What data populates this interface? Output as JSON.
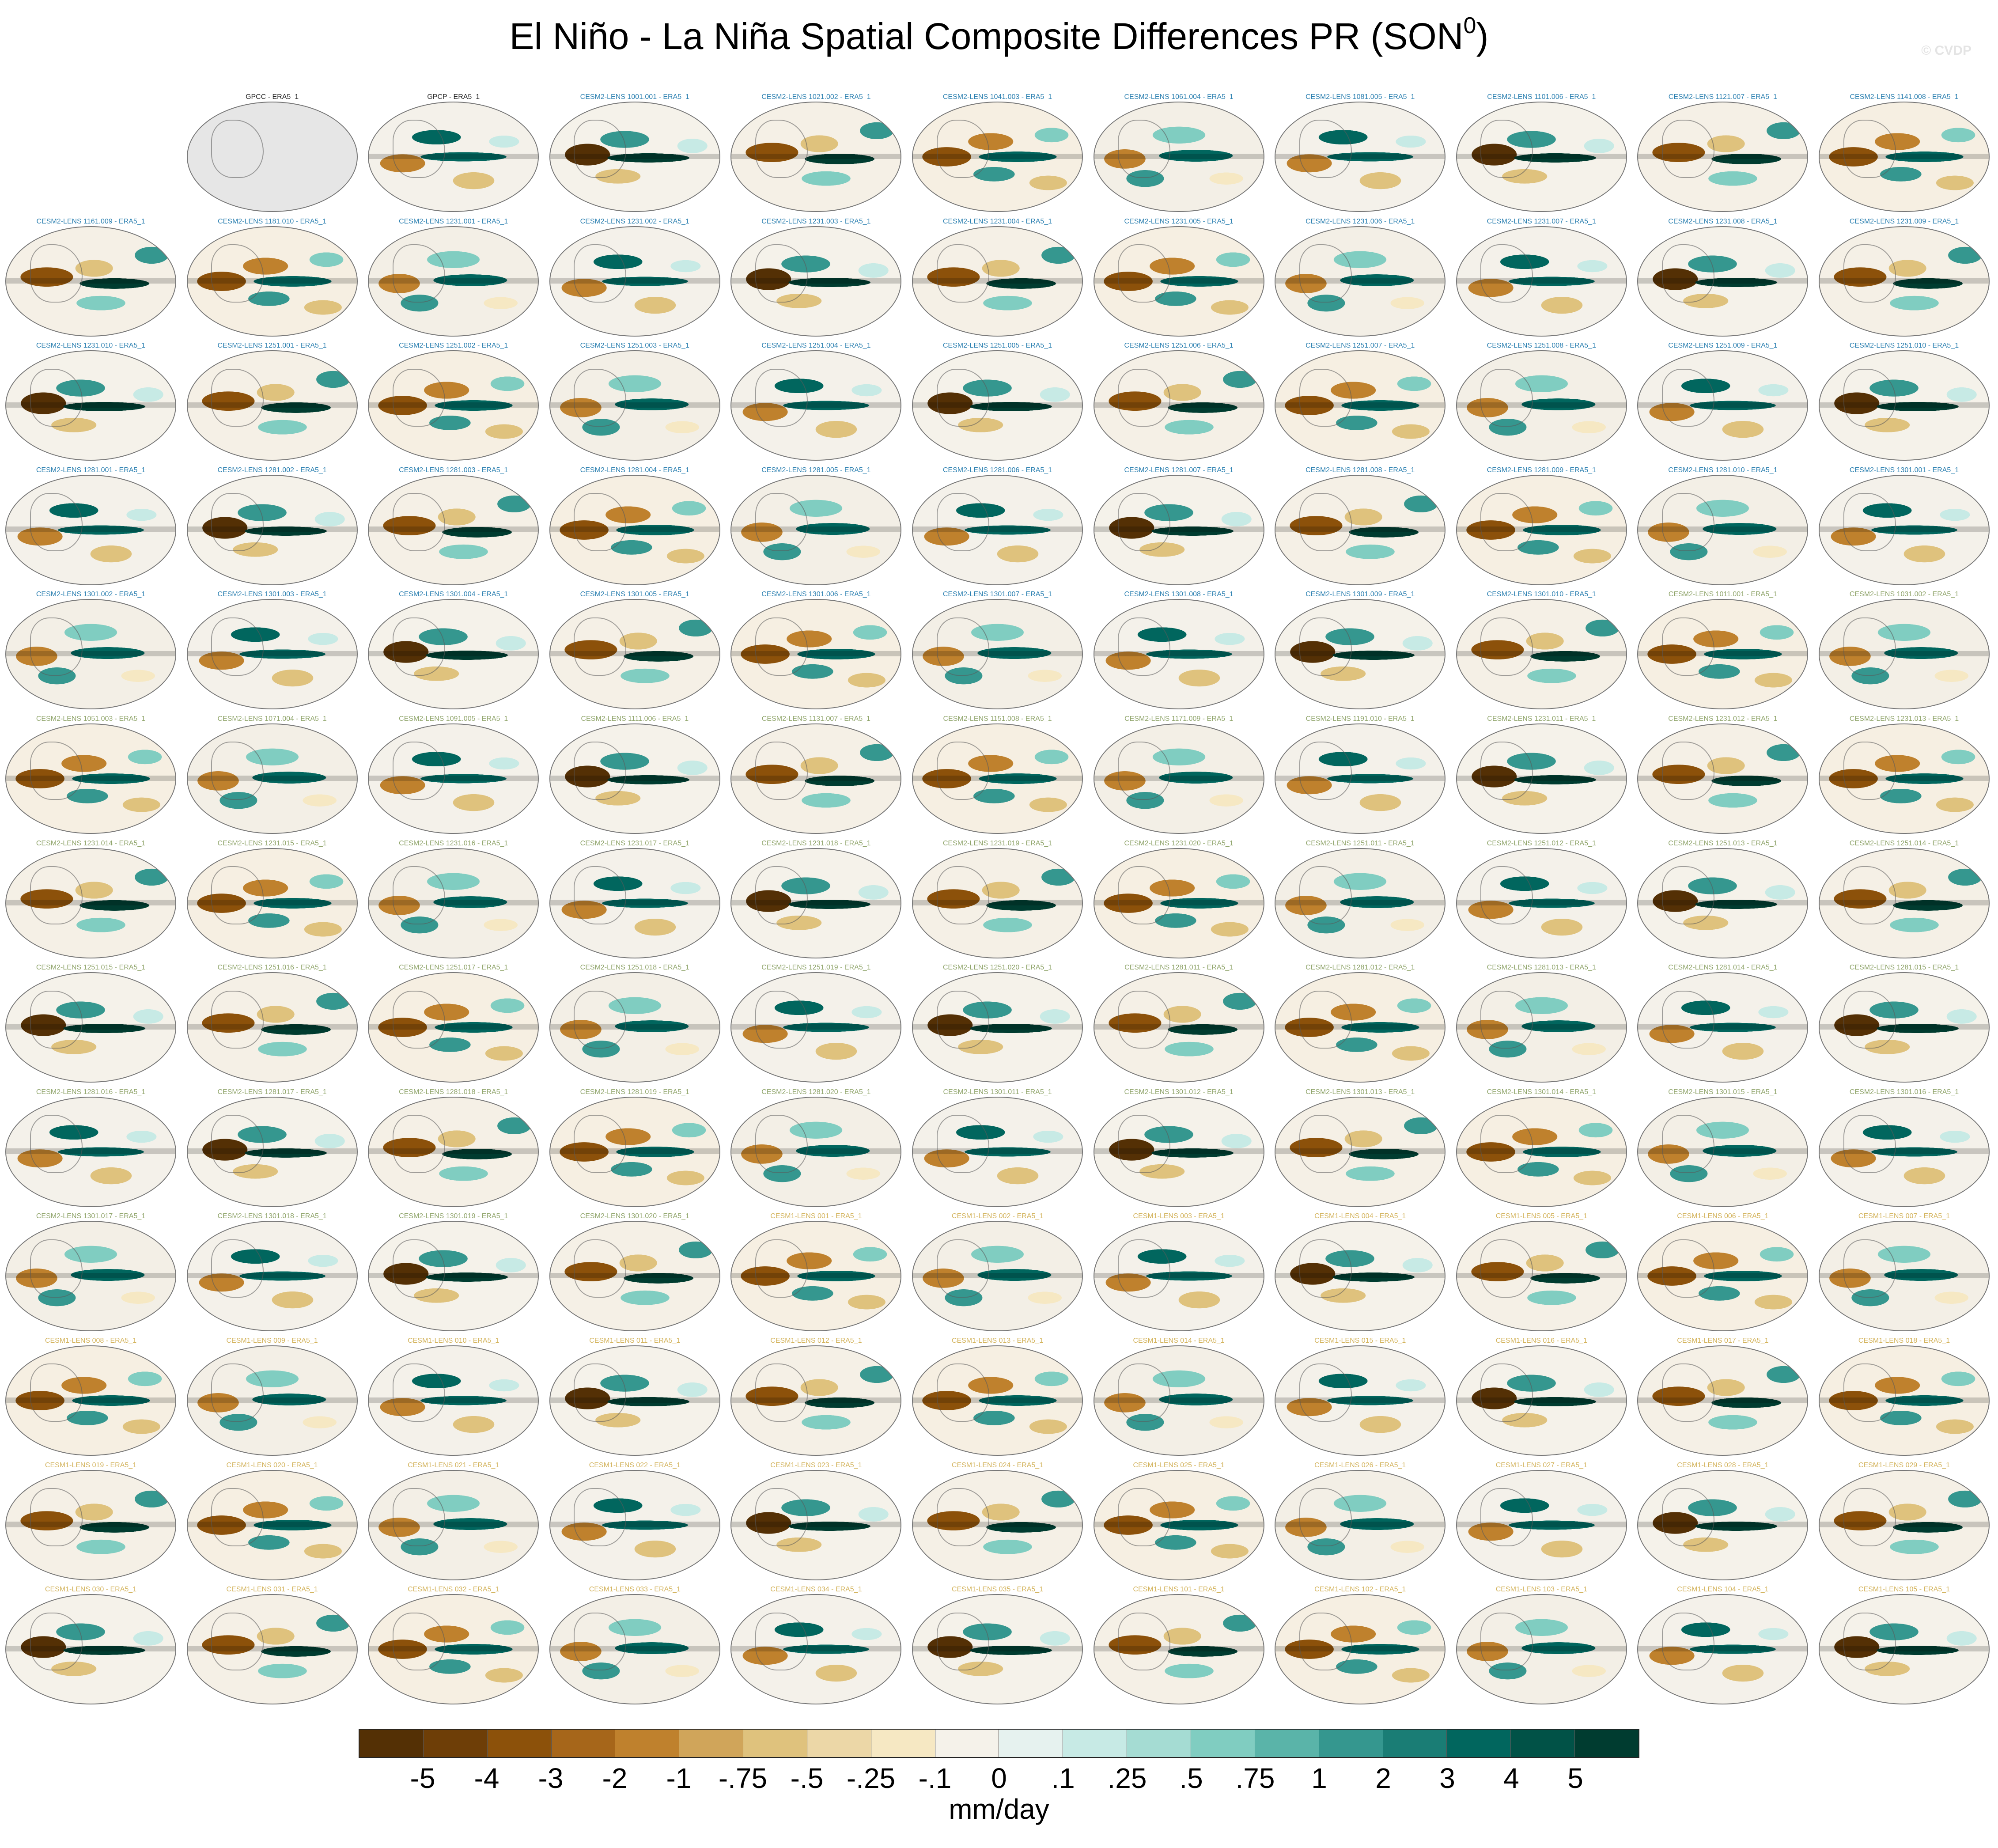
{
  "title_main": "El Niño - La Niña Spatial Composite Differences PR (SON",
  "title_sup": "0",
  "title_close": ")",
  "watermark": "© CVDP",
  "colors": {
    "gpcc": "#222222",
    "cesm2_a": "#2a7fb0",
    "cesm2_b": "#8fa46a",
    "cesm1": "#d3b35c"
  },
  "rows": [
    [
      null,
      {
        "label": "GPCC - ERA5_1",
        "group": "gpcc",
        "obs": true
      },
      {
        "label": "GPCP - ERA5_1",
        "group": "gpcc"
      },
      {
        "label": "CESM2-LENS 1001.001 - ERA5_1",
        "group": "cesm2_a"
      },
      {
        "label": "CESM2-LENS 1021.002 - ERA5_1",
        "group": "cesm2_a"
      },
      {
        "label": "CESM2-LENS 1041.003 - ERA5_1",
        "group": "cesm2_a"
      },
      {
        "label": "CESM2-LENS 1061.004 - ERA5_1",
        "group": "cesm2_a"
      },
      {
        "label": "CESM2-LENS 1081.005 - ERA5_1",
        "group": "cesm2_a"
      },
      {
        "label": "CESM2-LENS 1101.006 - ERA5_1",
        "group": "cesm2_a"
      },
      {
        "label": "CESM2-LENS 1121.007 - ERA5_1",
        "group": "cesm2_a"
      },
      {
        "label": "CESM2-LENS 1141.008 - ERA5_1",
        "group": "cesm2_a"
      }
    ],
    [
      {
        "label": "CESM2-LENS 1161.009 - ERA5_1",
        "group": "cesm2_a"
      },
      {
        "label": "CESM2-LENS 1181.010 - ERA5_1",
        "group": "cesm2_a"
      },
      {
        "label": "CESM2-LENS 1231.001 - ERA5_1",
        "group": "cesm2_a"
      },
      {
        "label": "CESM2-LENS 1231.002 - ERA5_1",
        "group": "cesm2_a"
      },
      {
        "label": "CESM2-LENS 1231.003 - ERA5_1",
        "group": "cesm2_a"
      },
      {
        "label": "CESM2-LENS 1231.004 - ERA5_1",
        "group": "cesm2_a"
      },
      {
        "label": "CESM2-LENS 1231.005 - ERA5_1",
        "group": "cesm2_a"
      },
      {
        "label": "CESM2-LENS 1231.006 - ERA5_1",
        "group": "cesm2_a"
      },
      {
        "label": "CESM2-LENS 1231.007 - ERA5_1",
        "group": "cesm2_a"
      },
      {
        "label": "CESM2-LENS 1231.008 - ERA5_1",
        "group": "cesm2_a"
      },
      {
        "label": "CESM2-LENS 1231.009 - ERA5_1",
        "group": "cesm2_a"
      }
    ],
    [
      {
        "label": "CESM2-LENS 1231.010 - ERA5_1",
        "group": "cesm2_a"
      },
      {
        "label": "CESM2-LENS 1251.001 - ERA5_1",
        "group": "cesm2_a"
      },
      {
        "label": "CESM2-LENS 1251.002 - ERA5_1",
        "group": "cesm2_a"
      },
      {
        "label": "CESM2-LENS 1251.003 - ERA5_1",
        "group": "cesm2_a"
      },
      {
        "label": "CESM2-LENS 1251.004 - ERA5_1",
        "group": "cesm2_a"
      },
      {
        "label": "CESM2-LENS 1251.005 - ERA5_1",
        "group": "cesm2_a"
      },
      {
        "label": "CESM2-LENS 1251.006 - ERA5_1",
        "group": "cesm2_a"
      },
      {
        "label": "CESM2-LENS 1251.007 - ERA5_1",
        "group": "cesm2_a"
      },
      {
        "label": "CESM2-LENS 1251.008 - ERA5_1",
        "group": "cesm2_a"
      },
      {
        "label": "CESM2-LENS 1251.009 - ERA5_1",
        "group": "cesm2_a"
      },
      {
        "label": "CESM2-LENS 1251.010 - ERA5_1",
        "group": "cesm2_a"
      }
    ],
    [
      {
        "label": "CESM2-LENS 1281.001 - ERA5_1",
        "group": "cesm2_a"
      },
      {
        "label": "CESM2-LENS 1281.002 - ERA5_1",
        "group": "cesm2_a"
      },
      {
        "label": "CESM2-LENS 1281.003 - ERA5_1",
        "group": "cesm2_a"
      },
      {
        "label": "CESM2-LENS 1281.004 - ERA5_1",
        "group": "cesm2_a"
      },
      {
        "label": "CESM2-LENS 1281.005 - ERA5_1",
        "group": "cesm2_a"
      },
      {
        "label": "CESM2-LENS 1281.006 - ERA5_1",
        "group": "cesm2_a"
      },
      {
        "label": "CESM2-LENS 1281.007 - ERA5_1",
        "group": "cesm2_a"
      },
      {
        "label": "CESM2-LENS 1281.008 - ERA5_1",
        "group": "cesm2_a"
      },
      {
        "label": "CESM2-LENS 1281.009 - ERA5_1",
        "group": "cesm2_a"
      },
      {
        "label": "CESM2-LENS 1281.010 - ERA5_1",
        "group": "cesm2_a"
      },
      {
        "label": "CESM2-LENS 1301.001 - ERA5_1",
        "group": "cesm2_a"
      }
    ],
    [
      {
        "label": "CESM2-LENS 1301.002 - ERA5_1",
        "group": "cesm2_a"
      },
      {
        "label": "CESM2-LENS 1301.003 - ERA5_1",
        "group": "cesm2_a"
      },
      {
        "label": "CESM2-LENS 1301.004 - ERA5_1",
        "group": "cesm2_a"
      },
      {
        "label": "CESM2-LENS 1301.005 - ERA5_1",
        "group": "cesm2_a"
      },
      {
        "label": "CESM2-LENS 1301.006 - ERA5_1",
        "group": "cesm2_a"
      },
      {
        "label": "CESM2-LENS 1301.007 - ERA5_1",
        "group": "cesm2_a"
      },
      {
        "label": "CESM2-LENS 1301.008 - ERA5_1",
        "group": "cesm2_a"
      },
      {
        "label": "CESM2-LENS 1301.009 - ERA5_1",
        "group": "cesm2_a"
      },
      {
        "label": "CESM2-LENS 1301.010 - ERA5_1",
        "group": "cesm2_a"
      },
      {
        "label": "CESM2-LENS 1011.001 - ERA5_1",
        "group": "cesm2_b"
      },
      {
        "label": "CESM2-LENS 1031.002 - ERA5_1",
        "group": "cesm2_b"
      }
    ],
    [
      {
        "label": "CESM2-LENS 1051.003 - ERA5_1",
        "group": "cesm2_b"
      },
      {
        "label": "CESM2-LENS 1071.004 - ERA5_1",
        "group": "cesm2_b"
      },
      {
        "label": "CESM2-LENS 1091.005 - ERA5_1",
        "group": "cesm2_b"
      },
      {
        "label": "CESM2-LENS 1111.006 - ERA5_1",
        "group": "cesm2_b"
      },
      {
        "label": "CESM2-LENS 1131.007 - ERA5_1",
        "group": "cesm2_b"
      },
      {
        "label": "CESM2-LENS 1151.008 - ERA5_1",
        "group": "cesm2_b"
      },
      {
        "label": "CESM2-LENS 1171.009 - ERA5_1",
        "group": "cesm2_b"
      },
      {
        "label": "CESM2-LENS 1191.010 - ERA5_1",
        "group": "cesm2_b"
      },
      {
        "label": "CESM2-LENS 1231.011 - ERA5_1",
        "group": "cesm2_b"
      },
      {
        "label": "CESM2-LENS 1231.012 - ERA5_1",
        "group": "cesm2_b"
      },
      {
        "label": "CESM2-LENS 1231.013 - ERA5_1",
        "group": "cesm2_b"
      }
    ],
    [
      {
        "label": "CESM2-LENS 1231.014 - ERA5_1",
        "group": "cesm2_b"
      },
      {
        "label": "CESM2-LENS 1231.015 - ERA5_1",
        "group": "cesm2_b"
      },
      {
        "label": "CESM2-LENS 1231.016 - ERA5_1",
        "group": "cesm2_b"
      },
      {
        "label": "CESM2-LENS 1231.017 - ERA5_1",
        "group": "cesm2_b"
      },
      {
        "label": "CESM2-LENS 1231.018 - ERA5_1",
        "group": "cesm2_b"
      },
      {
        "label": "CESM2-LENS 1231.019 - ERA5_1",
        "group": "cesm2_b"
      },
      {
        "label": "CESM2-LENS 1231.020 - ERA5_1",
        "group": "cesm2_b"
      },
      {
        "label": "CESM2-LENS 1251.011 - ERA5_1",
        "group": "cesm2_b"
      },
      {
        "label": "CESM2-LENS 1251.012 - ERA5_1",
        "group": "cesm2_b"
      },
      {
        "label": "CESM2-LENS 1251.013 - ERA5_1",
        "group": "cesm2_b"
      },
      {
        "label": "CESM2-LENS 1251.014 - ERA5_1",
        "group": "cesm2_b"
      }
    ],
    [
      {
        "label": "CESM2-LENS 1251.015 - ERA5_1",
        "group": "cesm2_b"
      },
      {
        "label": "CESM2-LENS 1251.016 - ERA5_1",
        "group": "cesm2_b"
      },
      {
        "label": "CESM2-LENS 1251.017 - ERA5_1",
        "group": "cesm2_b"
      },
      {
        "label": "CESM2-LENS 1251.018 - ERA5_1",
        "group": "cesm2_b"
      },
      {
        "label": "CESM2-LENS 1251.019 - ERA5_1",
        "group": "cesm2_b"
      },
      {
        "label": "CESM2-LENS 1251.020 - ERA5_1",
        "group": "cesm2_b"
      },
      {
        "label": "CESM2-LENS 1281.011 - ERA5_1",
        "group": "cesm2_b"
      },
      {
        "label": "CESM2-LENS 1281.012 - ERA5_1",
        "group": "cesm2_b"
      },
      {
        "label": "CESM2-LENS 1281.013 - ERA5_1",
        "group": "cesm2_b"
      },
      {
        "label": "CESM2-LENS 1281.014 - ERA5_1",
        "group": "cesm2_b"
      },
      {
        "label": "CESM2-LENS 1281.015 - ERA5_1",
        "group": "cesm2_b"
      }
    ],
    [
      {
        "label": "CESM2-LENS 1281.016 - ERA5_1",
        "group": "cesm2_b"
      },
      {
        "label": "CESM2-LENS 1281.017 - ERA5_1",
        "group": "cesm2_b"
      },
      {
        "label": "CESM2-LENS 1281.018 - ERA5_1",
        "group": "cesm2_b"
      },
      {
        "label": "CESM2-LENS 1281.019 - ERA5_1",
        "group": "cesm2_b"
      },
      {
        "label": "CESM2-LENS 1281.020 - ERA5_1",
        "group": "cesm2_b"
      },
      {
        "label": "CESM2-LENS 1301.011 - ERA5_1",
        "group": "cesm2_b"
      },
      {
        "label": "CESM2-LENS 1301.012 - ERA5_1",
        "group": "cesm2_b"
      },
      {
        "label": "CESM2-LENS 1301.013 - ERA5_1",
        "group": "cesm2_b"
      },
      {
        "label": "CESM2-LENS 1301.014 - ERA5_1",
        "group": "cesm2_b"
      },
      {
        "label": "CESM2-LENS 1301.015 - ERA5_1",
        "group": "cesm2_b"
      },
      {
        "label": "CESM2-LENS 1301.016 - ERA5_1",
        "group": "cesm2_b"
      }
    ],
    [
      {
        "label": "CESM2-LENS 1301.017 - ERA5_1",
        "group": "cesm2_b"
      },
      {
        "label": "CESM2-LENS 1301.018 - ERA5_1",
        "group": "cesm2_b"
      },
      {
        "label": "CESM2-LENS 1301.019 - ERA5_1",
        "group": "cesm2_b"
      },
      {
        "label": "CESM2-LENS 1301.020 - ERA5_1",
        "group": "cesm2_b"
      },
      {
        "label": "CESM1-LENS 001 - ERA5_1",
        "group": "cesm1"
      },
      {
        "label": "CESM1-LENS 002 - ERA5_1",
        "group": "cesm1"
      },
      {
        "label": "CESM1-LENS 003 - ERA5_1",
        "group": "cesm1"
      },
      {
        "label": "CESM1-LENS 004 - ERA5_1",
        "group": "cesm1"
      },
      {
        "label": "CESM1-LENS 005 - ERA5_1",
        "group": "cesm1"
      },
      {
        "label": "CESM1-LENS 006 - ERA5_1",
        "group": "cesm1"
      },
      {
        "label": "CESM1-LENS 007 - ERA5_1",
        "group": "cesm1"
      }
    ],
    [
      {
        "label": "CESM1-LENS 008 - ERA5_1",
        "group": "cesm1"
      },
      {
        "label": "CESM1-LENS 009 - ERA5_1",
        "group": "cesm1"
      },
      {
        "label": "CESM1-LENS 010 - ERA5_1",
        "group": "cesm1"
      },
      {
        "label": "CESM1-LENS 011 - ERA5_1",
        "group": "cesm1"
      },
      {
        "label": "CESM1-LENS 012 - ERA5_1",
        "group": "cesm1"
      },
      {
        "label": "CESM1-LENS 013 - ERA5_1",
        "group": "cesm1"
      },
      {
        "label": "CESM1-LENS 014 - ERA5_1",
        "group": "cesm1"
      },
      {
        "label": "CESM1-LENS 015 - ERA5_1",
        "group": "cesm1"
      },
      {
        "label": "CESM1-LENS 016 - ERA5_1",
        "group": "cesm1"
      },
      {
        "label": "CESM1-LENS 017 - ERA5_1",
        "group": "cesm1"
      },
      {
        "label": "CESM1-LENS 018 - ERA5_1",
        "group": "cesm1"
      }
    ],
    [
      {
        "label": "CESM1-LENS 019 - ERA5_1",
        "group": "cesm1"
      },
      {
        "label": "CESM1-LENS 020 - ERA5_1",
        "group": "cesm1"
      },
      {
        "label": "CESM1-LENS 021 - ERA5_1",
        "group": "cesm1"
      },
      {
        "label": "CESM1-LENS 022 - ERA5_1",
        "group": "cesm1"
      },
      {
        "label": "CESM1-LENS 023 - ERA5_1",
        "group": "cesm1"
      },
      {
        "label": "CESM1-LENS 024 - ERA5_1",
        "group": "cesm1"
      },
      {
        "label": "CESM1-LENS 025 - ERA5_1",
        "group": "cesm1"
      },
      {
        "label": "CESM1-LENS 026 - ERA5_1",
        "group": "cesm1"
      },
      {
        "label": "CESM1-LENS 027 - ERA5_1",
        "group": "cesm1"
      },
      {
        "label": "CESM1-LENS 028 - ERA5_1",
        "group": "cesm1"
      },
      {
        "label": "CESM1-LENS 029 - ERA5_1",
        "group": "cesm1"
      }
    ],
    [
      {
        "label": "CESM1-LENS 030 - ERA5_1",
        "group": "cesm1"
      },
      {
        "label": "CESM1-LENS 031 - ERA5_1",
        "group": "cesm1"
      },
      {
        "label": "CESM1-LENS 032 - ERA5_1",
        "group": "cesm1"
      },
      {
        "label": "CESM1-LENS 033 - ERA5_1",
        "group": "cesm1"
      },
      {
        "label": "CESM1-LENS 034 - ERA5_1",
        "group": "cesm1"
      },
      {
        "label": "CESM1-LENS 035 - ERA5_1",
        "group": "cesm1"
      },
      {
        "label": "CESM1-LENS 101 - ERA5_1",
        "group": "cesm1"
      },
      {
        "label": "CESM1-LENS 102 - ERA5_1",
        "group": "cesm1"
      },
      {
        "label": "CESM1-LENS 103 - ERA5_1",
        "group": "cesm1"
      },
      {
        "label": "CESM1-LENS 104 - ERA5_1",
        "group": "cesm1"
      },
      {
        "label": "CESM1-LENS 105 - ERA5_1",
        "group": "cesm1"
      }
    ]
  ],
  "colorbar": {
    "unit": "mm/day",
    "colors": [
      "#543005",
      "#6e3e07",
      "#8c510a",
      "#a6661a",
      "#bf812d",
      "#d0a55a",
      "#dfc27d",
      "#ecd7a7",
      "#f6e8c3",
      "#f5f2ea",
      "#e6f2ef",
      "#c7eae5",
      "#a5dcd3",
      "#80cdc1",
      "#5ab4a9",
      "#35978f",
      "#1a7d75",
      "#01665e",
      "#015247",
      "#003c30"
    ],
    "ticks": [
      "-5",
      "-4",
      "-3",
      "-2",
      "-1",
      "-.75",
      "-.5",
      "-.25",
      "-.1",
      "0",
      ".1",
      ".25",
      ".5",
      ".75",
      "1",
      "2",
      "3",
      "4",
      "5"
    ]
  }
}
